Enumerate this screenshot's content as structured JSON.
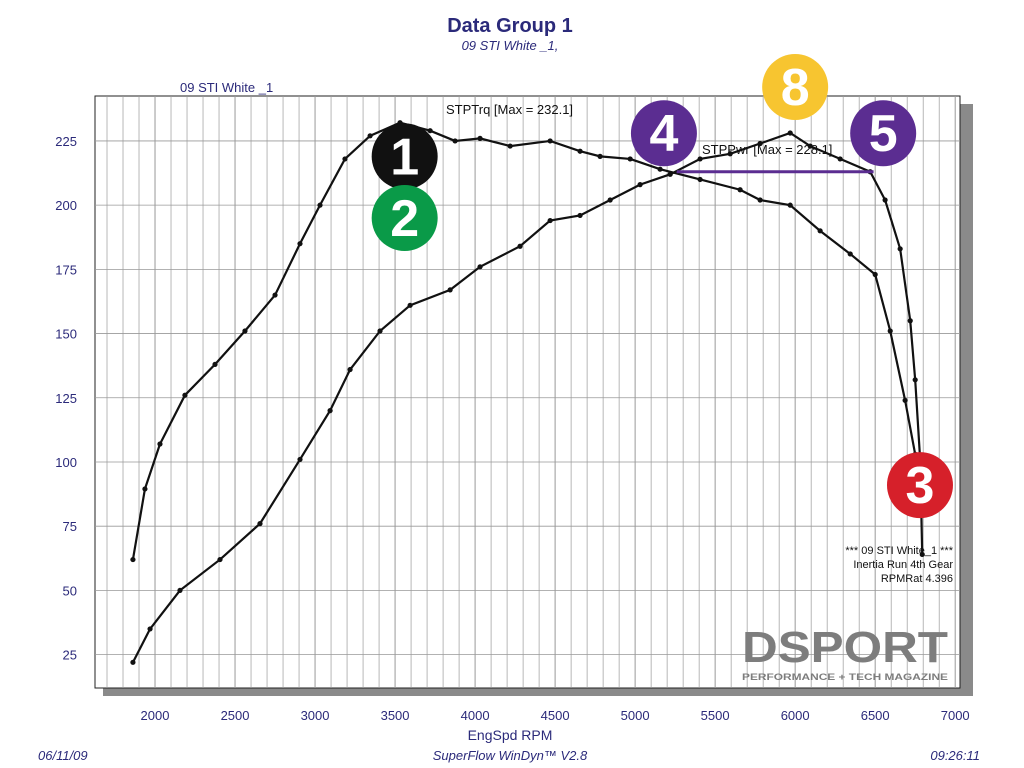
{
  "title": "Data Group 1",
  "subtitle": "09 STI White _1,",
  "run_label": "09 STI White _1",
  "footer": {
    "date": "06/11/09",
    "software": "SuperFlow WinDyn™ V2.8",
    "time": "09:26:11"
  },
  "info_box": [
    "*** 09 STI White_1 ***",
    "Inertia Run 4th Gear",
    "RPMRat 4.396"
  ],
  "logo": {
    "name": "DSPORT",
    "tagline": "PERFORMANCE + TECH MAGAZINE"
  },
  "colors": {
    "title": "#2b2a7a",
    "curve": "#111111",
    "grid": "#999999",
    "purple": "#5b2d91",
    "badge_1": "#111111",
    "badge_2": "#0a9a48",
    "badge_3": "#d6202a",
    "badge_4": "#5b2d91",
    "badge_5": "#5b2d91",
    "badge_8": "#f7c530"
  },
  "badges": [
    {
      "label": "1",
      "color": "#111111",
      "rpm": 3560,
      "value": 219
    },
    {
      "label": "2",
      "color": "#0a9a48",
      "rpm": 3560,
      "value": 195
    },
    {
      "label": "3",
      "color": "#d6202a",
      "rpm": 6780,
      "value": 91
    },
    {
      "label": "4",
      "color": "#5b2d91",
      "rpm": 5180,
      "value": 228
    },
    {
      "label": "5",
      "color": "#5b2d91",
      "rpm": 6550,
      "value": 228
    },
    {
      "label": "8",
      "color": "#f7c530",
      "rpm": 6000,
      "value": 246
    }
  ],
  "chart_data": {
    "type": "line",
    "title": "Data Group 1",
    "xlabel": "EngSpd  RPM",
    "ylabel": "",
    "xlim": [
      1625,
      7030
    ],
    "ylim": [
      12,
      242.5
    ],
    "xticks": [
      2000,
      2500,
      3000,
      3500,
      4000,
      4500,
      5000,
      5500,
      6000,
      6500,
      7000
    ],
    "yticks": [
      25,
      50,
      75,
      100,
      125,
      150,
      175,
      200,
      225
    ],
    "grid": true,
    "series": [
      {
        "name": "STPTrq [Max = 232.1]",
        "x": [
          1862,
          1937,
          2031,
          2187,
          2375,
          2562,
          2750,
          2906,
          3031,
          3187,
          3344,
          3531,
          3719,
          3875,
          4031,
          4219,
          4469,
          4656,
          4781,
          4969,
          5156,
          5406,
          5656,
          5781,
          5969,
          6156,
          6344,
          6500,
          6594,
          6687,
          6750
        ],
        "y": [
          62,
          89.5,
          107,
          126,
          138,
          151,
          165,
          185,
          200,
          218,
          227,
          232.1,
          229,
          225,
          226,
          223,
          225,
          221,
          219,
          218,
          214,
          210,
          206,
          202,
          200,
          190,
          181,
          173,
          151,
          124,
          103
        ]
      },
      {
        "name": "STPPwr [Max = 228.1]",
        "x": [
          1862,
          1969,
          2156,
          2406,
          2656,
          2906,
          3094,
          3219,
          3406,
          3594,
          3844,
          4031,
          4281,
          4469,
          4656,
          4844,
          5031,
          5219,
          5406,
          5594,
          5781,
          5969,
          6094,
          6281,
          6469,
          6562,
          6656,
          6719,
          6750,
          6781,
          6794
        ],
        "y": [
          22,
          35,
          50,
          62,
          76,
          101,
          120,
          136,
          151,
          161,
          167,
          176,
          184,
          194,
          196,
          202,
          208,
          212,
          218,
          220,
          224,
          228.1,
          223,
          218,
          213,
          202,
          183,
          155,
          132,
          101,
          64
        ]
      }
    ],
    "annotations": [
      {
        "type": "hline",
        "from_rpm": 5260,
        "to_rpm": 6490,
        "value": 213,
        "color": "#5b2d91"
      }
    ]
  }
}
